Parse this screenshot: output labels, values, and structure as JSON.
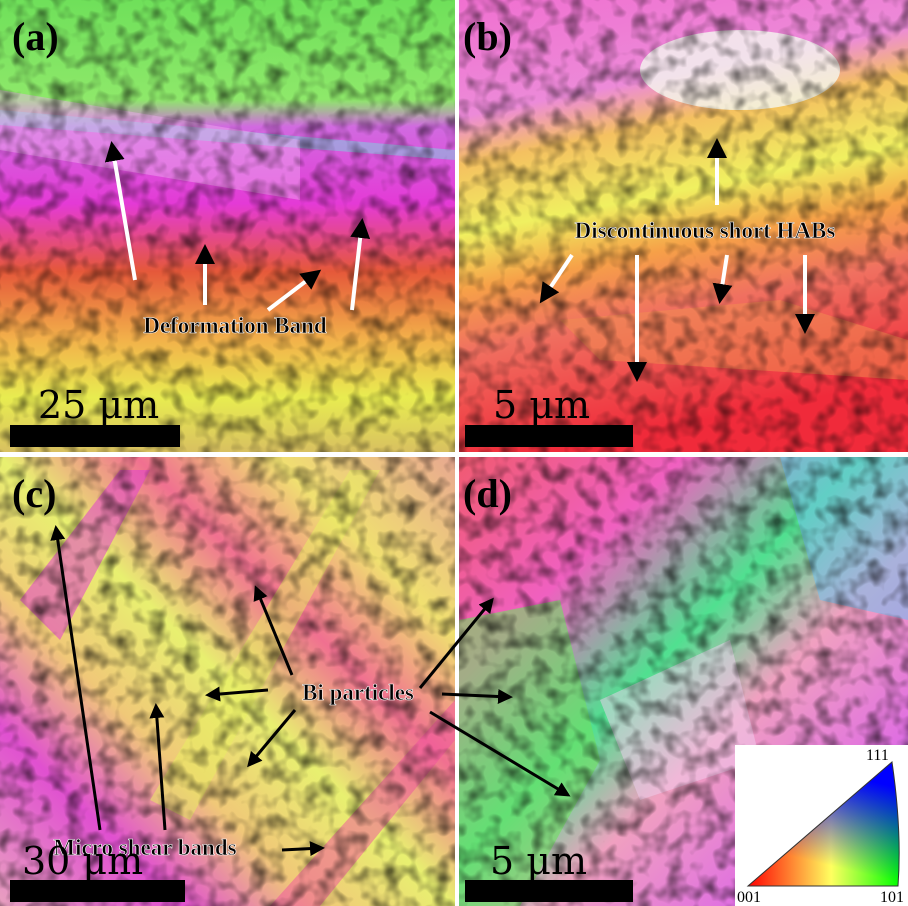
{
  "panels": [
    {
      "label": "(a)",
      "annotations": [
        "Deformation Band"
      ],
      "scale_bar": "25 μm"
    },
    {
      "label": "(b)",
      "annotations": [
        "Discontinuous short HABs"
      ],
      "scale_bar": "5 μm"
    },
    {
      "label": "(c)",
      "annotations": [
        "Bi particles",
        "Micro shear bands"
      ],
      "scale_bar": "30 μm"
    },
    {
      "label": "(d)",
      "scale_bar": "5 μm"
    }
  ],
  "ipf_legend": {
    "corners": [
      "001",
      "101",
      "111"
    ]
  }
}
